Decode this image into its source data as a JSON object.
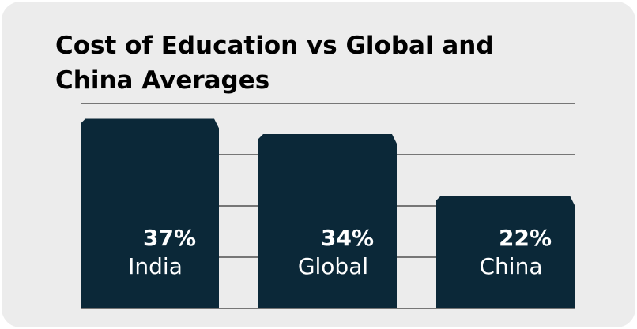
{
  "chart_data": {
    "type": "bar",
    "title": "Cost of Education vs Global and China Averages",
    "categories": [
      "India",
      "Global",
      "China"
    ],
    "values": [
      37,
      34,
      22
    ],
    "data_labels": [
      "37%",
      "34%",
      "22%"
    ],
    "ylim": [
      0,
      40
    ],
    "grid": true,
    "gridlines": [
      10,
      20,
      30,
      40
    ],
    "bar_color": "#0b2838",
    "label_color": "#ffffff",
    "background": "#ececec"
  }
}
